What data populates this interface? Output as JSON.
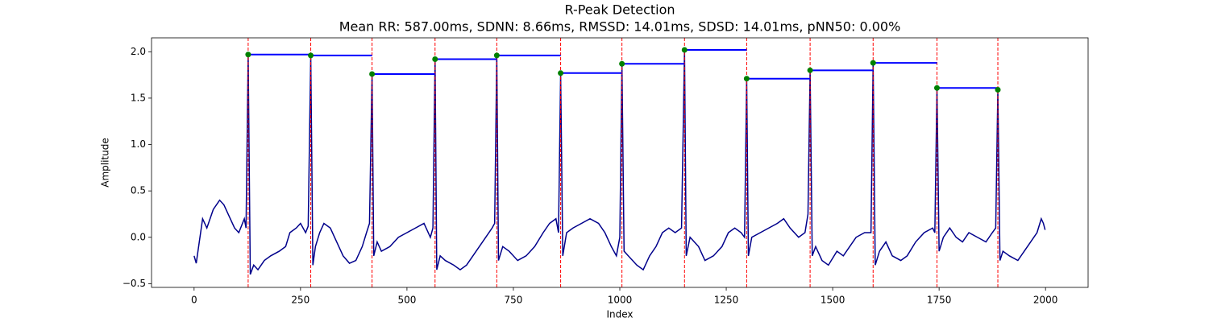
{
  "chart_data": {
    "type": "line",
    "title": "R-Peak Detection",
    "subtitle": "Mean RR: 587.00ms, SDNN: 8.66ms, RMSSD: 14.01ms, SDSD: 14.01ms, pNN50: 0.00%",
    "xlabel": "Index",
    "ylabel": "Amplitude",
    "color": "#00008b",
    "x": [
      0,
      5,
      20,
      30,
      45,
      60,
      70,
      80,
      95,
      105,
      118,
      122,
      127,
      132,
      140,
      150,
      165,
      180,
      200,
      215,
      225,
      240,
      250,
      262,
      268,
      274,
      279,
      285,
      295,
      305,
      320,
      335,
      350,
      365,
      380,
      395,
      405,
      412,
      418,
      422,
      430,
      440,
      460,
      480,
      500,
      520,
      540,
      555,
      561,
      566,
      570,
      578,
      590,
      610,
      625,
      640,
      655,
      670,
      685,
      700,
      706,
      711,
      715,
      725,
      740,
      760,
      780,
      800,
      820,
      835,
      850,
      856,
      861,
      866,
      875,
      890,
      910,
      930,
      950,
      965,
      980,
      992,
      1000,
      1005,
      1010,
      1020,
      1040,
      1055,
      1070,
      1085,
      1100,
      1115,
      1130,
      1145,
      1152,
      1156,
      1165,
      1185,
      1200,
      1220,
      1240,
      1255,
      1270,
      1285,
      1293,
      1298,
      1302,
      1310,
      1330,
      1350,
      1370,
      1385,
      1400,
      1420,
      1435,
      1442,
      1447,
      1452,
      1460,
      1475,
      1490,
      1510,
      1525,
      1540,
      1555,
      1575,
      1590,
      1595,
      1600,
      1610,
      1625,
      1640,
      1660,
      1675,
      1695,
      1715,
      1735,
      1740,
      1745,
      1750,
      1760,
      1775,
      1790,
      1805,
      1820,
      1840,
      1860,
      1875,
      1883,
      1888,
      1893,
      1900,
      1915,
      1935,
      1950,
      1965,
      1980,
      1990,
      1995,
      1999
    ],
    "values": [
      -0.2,
      -0.28,
      0.2,
      0.1,
      0.3,
      0.4,
      0.35,
      0.25,
      0.1,
      0.05,
      0.2,
      0.1,
      1.97,
      -0.4,
      -0.3,
      -0.35,
      -0.25,
      -0.2,
      -0.15,
      -0.1,
      0.05,
      0.1,
      0.15,
      0.05,
      0.12,
      1.96,
      -0.3,
      -0.1,
      0.05,
      0.15,
      0.1,
      -0.05,
      -0.2,
      -0.28,
      -0.25,
      -0.1,
      0.05,
      0.15,
      1.76,
      -0.2,
      -0.05,
      -0.15,
      -0.1,
      0.0,
      0.05,
      0.1,
      0.15,
      0.0,
      0.1,
      1.92,
      -0.35,
      -0.2,
      -0.25,
      -0.3,
      -0.35,
      -0.3,
      -0.2,
      -0.1,
      0.0,
      0.1,
      0.15,
      1.96,
      -0.25,
      -0.1,
      -0.15,
      -0.25,
      -0.2,
      -0.1,
      0.05,
      0.15,
      0.2,
      0.05,
      1.77,
      -0.2,
      0.05,
      0.1,
      0.15,
      0.2,
      0.15,
      0.05,
      -0.1,
      -0.2,
      0.0,
      1.87,
      -0.15,
      -0.2,
      -0.3,
      -0.35,
      -0.2,
      -0.1,
      0.05,
      0.1,
      0.05,
      0.1,
      2.02,
      -0.2,
      0.0,
      -0.1,
      -0.25,
      -0.2,
      -0.1,
      0.05,
      0.1,
      0.05,
      0.0,
      1.71,
      -0.2,
      0.0,
      0.05,
      0.1,
      0.15,
      0.2,
      0.1,
      0.0,
      0.05,
      0.25,
      1.8,
      -0.2,
      -0.1,
      -0.25,
      -0.3,
      -0.15,
      -0.2,
      -0.1,
      0.0,
      0.05,
      0.05,
      1.88,
      -0.3,
      -0.15,
      -0.05,
      -0.2,
      -0.25,
      -0.2,
      -0.05,
      0.05,
      0.1,
      0.05,
      1.61,
      -0.15,
      0.0,
      0.1,
      0.0,
      -0.05,
      0.05,
      0.0,
      -0.05,
      0.05,
      0.1,
      1.59,
      -0.25,
      -0.15,
      -0.2,
      -0.25,
      -0.15,
      -0.05,
      0.05,
      0.2,
      0.15,
      0.08
    ],
    "peaks": {
      "x": [
        127,
        274,
        418,
        566,
        711,
        861,
        1005,
        1152,
        1298,
        1447,
        1595,
        1745,
        1888
      ],
      "values": [
        1.97,
        1.96,
        1.76,
        1.92,
        1.96,
        1.77,
        1.87,
        2.02,
        1.71,
        1.8,
        1.88,
        1.61,
        1.59
      ],
      "marker_color": "#008000",
      "line_color": "#ff0000",
      "interval_color": "#0000ff"
    },
    "xlim": [
      -100,
      2100
    ],
    "ylim": [
      -0.54,
      2.15
    ],
    "xticks": [
      0,
      250,
      500,
      750,
      1000,
      1250,
      1500,
      1750,
      2000
    ],
    "yticks": [
      {
        "value": -0.5,
        "label": "−0.5"
      },
      {
        "value": 0,
        "label": "0.0"
      },
      {
        "value": 0.5,
        "label": "0.5"
      },
      {
        "value": 1,
        "label": "1.0"
      },
      {
        "value": 1.5,
        "label": "1.5"
      },
      {
        "value": 2,
        "label": "2.0"
      }
    ],
    "grid": false
  }
}
